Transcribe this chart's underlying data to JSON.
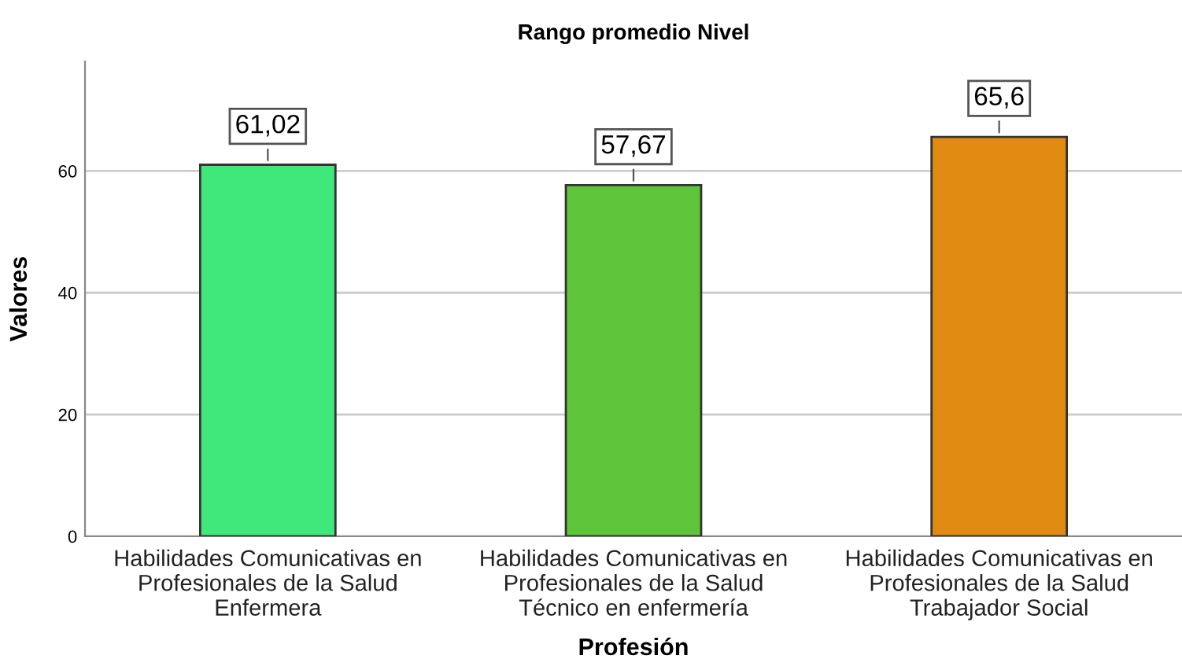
{
  "chart_data": {
    "type": "bar",
    "title": "Rango promedio Nivel",
    "xlabel": "Profesión",
    "ylabel": "Valores",
    "categories": [
      "Habilidades Comunicativas en\nProfesionales de la Salud\nEnfermera",
      "Habilidades Comunicativas en\nProfesionales de la Salud\nTécnico en enfermería",
      "Habilidades Comunicativas en\nProfesionales de la Salud\nTrabajador Social"
    ],
    "values": [
      61.02,
      57.67,
      65.6
    ],
    "colors": [
      "#40e87b",
      "#5ec43a",
      "#e08a12"
    ],
    "value_labels": [
      "61,02",
      "57,67",
      "65,6"
    ],
    "ylim": [
      0,
      78
    ],
    "yticks": [
      0,
      20,
      40,
      60
    ],
    "grid": "y"
  }
}
